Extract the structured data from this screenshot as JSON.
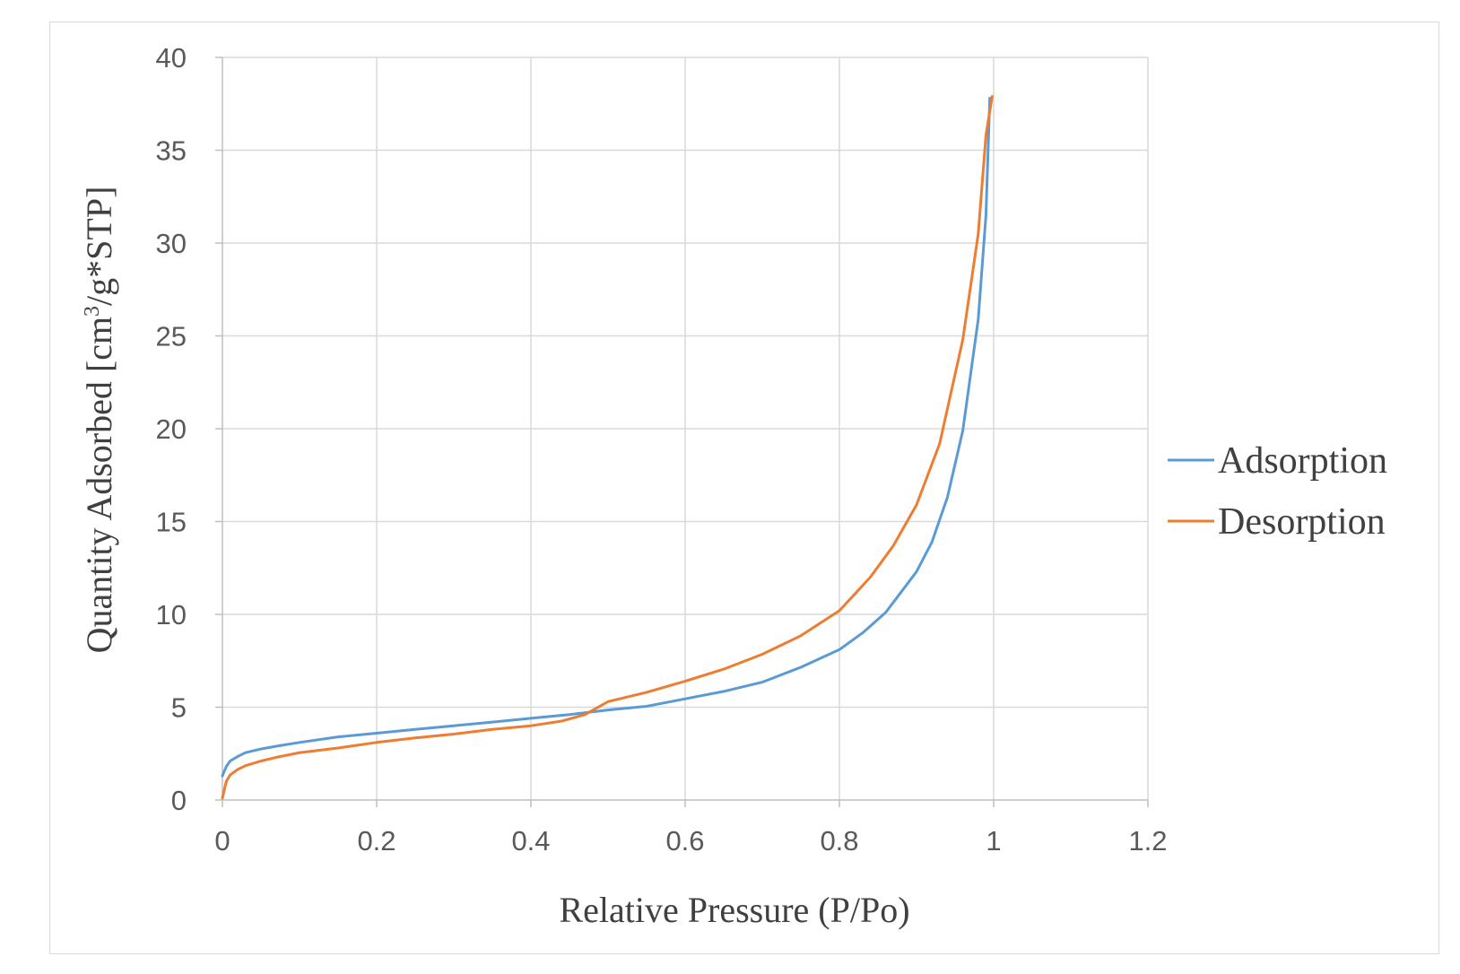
{
  "chart_data": {
    "type": "line",
    "title": "",
    "xlabel": "Relative Pressure (P/Po)",
    "ylabel_parts": [
      "Quantity Adsorbed  [cm",
      "3",
      "/g*STP]"
    ],
    "xlim": [
      0,
      1.2
    ],
    "ylim": [
      0,
      40
    ],
    "xticks": [
      0,
      0.2,
      0.4,
      0.6,
      0.8,
      1,
      1.2
    ],
    "xtick_labels": [
      "0",
      "0.2",
      "0.4",
      "0.6",
      "0.8",
      "1",
      "1.2"
    ],
    "yticks": [
      0,
      5,
      10,
      15,
      20,
      25,
      30,
      35,
      40
    ],
    "ytick_labels": [
      "0",
      "5",
      "10",
      "15",
      "20",
      "25",
      "30",
      "35",
      "40"
    ],
    "grid": true,
    "legend_position": "right",
    "series": [
      {
        "name": "Adsorption",
        "color": "#5b9bd5",
        "x": [
          0,
          0.005,
          0.01,
          0.02,
          0.03,
          0.05,
          0.07,
          0.1,
          0.15,
          0.2,
          0.25,
          0.3,
          0.35,
          0.4,
          0.45,
          0.5,
          0.55,
          0.6,
          0.65,
          0.7,
          0.75,
          0.8,
          0.83,
          0.86,
          0.88,
          0.9,
          0.92,
          0.94,
          0.96,
          0.98,
          0.99,
          0.995
        ],
        "y": [
          1.3,
          1.8,
          2.1,
          2.35,
          2.55,
          2.75,
          2.9,
          3.1,
          3.4,
          3.6,
          3.8,
          4.0,
          4.2,
          4.4,
          4.6,
          4.85,
          5.05,
          5.45,
          5.85,
          6.35,
          7.15,
          8.1,
          9.0,
          10.1,
          11.2,
          12.3,
          13.9,
          16.3,
          19.9,
          25.9,
          31.5,
          37.8
        ]
      },
      {
        "name": "Desorption",
        "color": "#ed7d31",
        "x": [
          0,
          0.005,
          0.01,
          0.02,
          0.03,
          0.05,
          0.07,
          0.1,
          0.15,
          0.2,
          0.25,
          0.3,
          0.35,
          0.4,
          0.44,
          0.47,
          0.5,
          0.55,
          0.6,
          0.65,
          0.7,
          0.75,
          0.8,
          0.84,
          0.87,
          0.9,
          0.93,
          0.96,
          0.98,
          0.99,
          0.998
        ],
        "y": [
          0.1,
          1.0,
          1.35,
          1.65,
          1.85,
          2.1,
          2.3,
          2.55,
          2.8,
          3.1,
          3.35,
          3.55,
          3.8,
          4.0,
          4.25,
          4.6,
          5.3,
          5.8,
          6.4,
          7.05,
          7.85,
          8.85,
          10.2,
          12.0,
          13.7,
          15.9,
          19.2,
          24.8,
          30.5,
          35.8,
          37.9
        ]
      }
    ]
  }
}
